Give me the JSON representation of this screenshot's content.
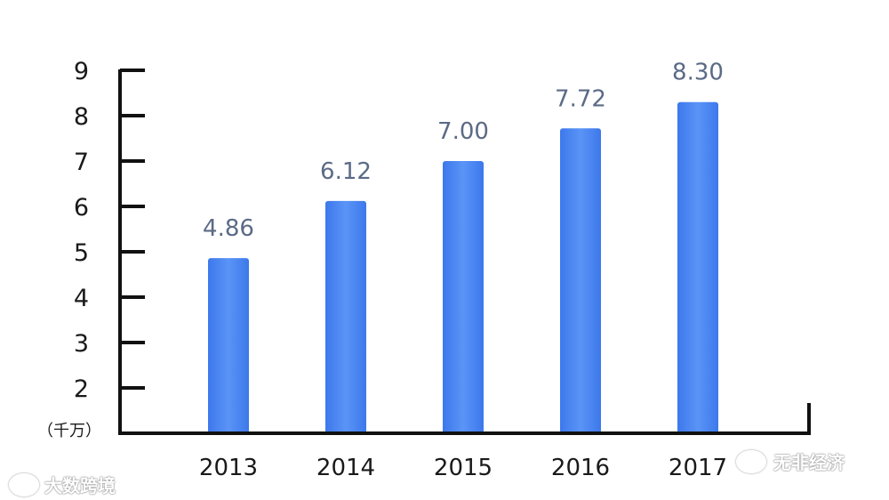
{
  "chart_data": {
    "type": "bar",
    "categories": [
      "2013",
      "2014",
      "2015",
      "2016",
      "2017"
    ],
    "values": [
      4.86,
      6.12,
      7.0,
      7.72,
      8.3
    ],
    "value_labels": [
      "4.86",
      "6.12",
      "7.00",
      "7.72",
      "8.30"
    ],
    "y_ticks": [
      "2",
      "3",
      "4",
      "5",
      "6",
      "7",
      "8",
      "9"
    ],
    "unit_label": "（千万）",
    "ylim": [
      1,
      9
    ],
    "bar_color": "#4a85f0",
    "grid": false
  },
  "watermarks": {
    "left": "大数跨境",
    "right": "无非经济"
  }
}
